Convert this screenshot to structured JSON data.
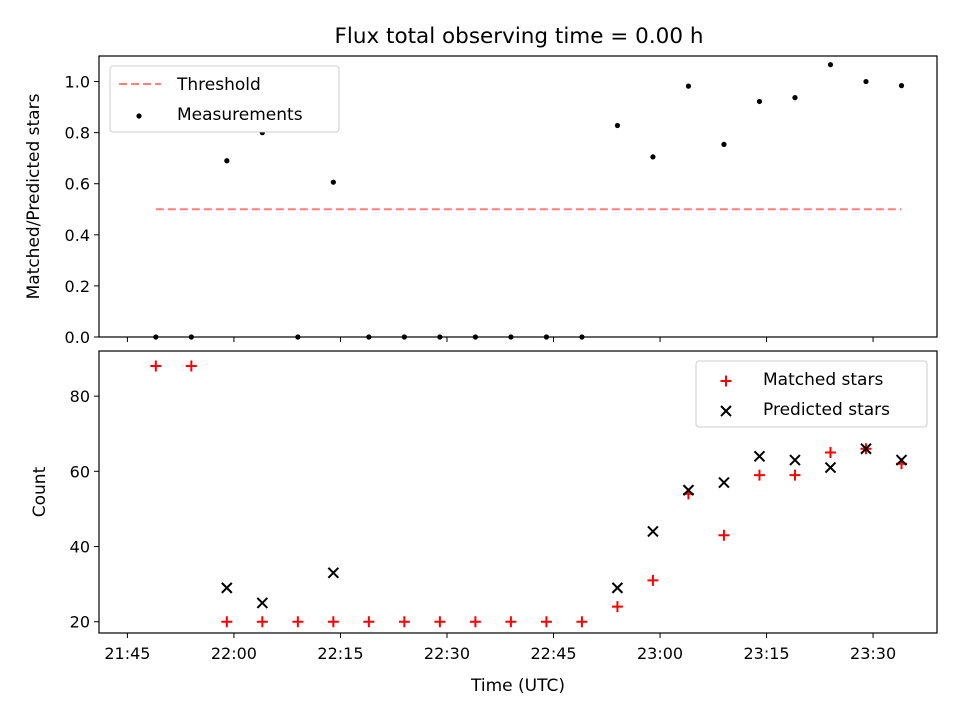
{
  "figure": {
    "title": "Flux total observing time = 0.00 h"
  },
  "chart_data": [
    {
      "type": "scatter",
      "panel": "top",
      "ylabel": "Matched/Predicted stars",
      "xlabel": "",
      "xlim": [
        "21:41",
        "23:39"
      ],
      "ylim": [
        0,
        1.1
      ],
      "yticks": [
        0.0,
        0.2,
        0.4,
        0.6,
        0.8,
        1.0
      ],
      "xticks": [
        "21:45",
        "22:00",
        "22:15",
        "22:30",
        "22:45",
        "23:00",
        "23:15",
        "23:30"
      ],
      "grid": false,
      "legend": "top-left",
      "series": [
        {
          "name": "Threshold",
          "style": "dashed-line",
          "color": "#ff7f7f",
          "x": [
            "21:49",
            "23:34"
          ],
          "values": [
            0.5,
            0.5
          ]
        },
        {
          "name": "Measurements",
          "style": "dot",
          "color": "#000000",
          "x": [
            "21:49",
            "21:54",
            "21:59",
            "22:04",
            "22:09",
            "22:14",
            "22:19",
            "22:24",
            "22:29",
            "22:34",
            "22:39",
            "22:44",
            "22:49",
            "22:54",
            "22:59",
            "23:04",
            "23:09",
            "23:14",
            "23:19",
            "23:24",
            "23:29",
            "23:34"
          ],
          "values": [
            0.0,
            0.0,
            0.69,
            0.8,
            0.0,
            0.606,
            0.0,
            0.0,
            0.0,
            0.0,
            0.0,
            0.0,
            0.0,
            0.828,
            0.705,
            0.982,
            0.754,
            0.922,
            0.937,
            1.066,
            1.0,
            0.984
          ]
        }
      ]
    },
    {
      "type": "scatter",
      "panel": "bottom",
      "ylabel": "Count",
      "xlabel": "Time (UTC)",
      "xlim": [
        "21:41",
        "23:39"
      ],
      "ylim": [
        17,
        92
      ],
      "yticks": [
        20,
        40,
        60,
        80
      ],
      "xticks": [
        "21:45",
        "22:00",
        "22:15",
        "22:30",
        "22:45",
        "23:00",
        "23:15",
        "23:30"
      ],
      "grid": false,
      "legend": "top-right",
      "series": [
        {
          "name": "Matched stars",
          "style": "plus",
          "color": "#ff0000",
          "x": [
            "21:49",
            "21:54",
            "21:59",
            "22:04",
            "22:09",
            "22:14",
            "22:19",
            "22:24",
            "22:29",
            "22:34",
            "22:39",
            "22:44",
            "22:49",
            "22:54",
            "22:59",
            "23:04",
            "23:09",
            "23:14",
            "23:19",
            "23:24",
            "23:29",
            "23:34"
          ],
          "values": [
            88,
            88,
            20,
            20,
            20,
            20,
            20,
            20,
            20,
            20,
            20,
            20,
            20,
            24,
            31,
            54,
            43,
            59,
            59,
            65,
            66,
            62
          ]
        },
        {
          "name": "Predicted stars",
          "style": "x",
          "color": "#000000",
          "x": [
            "21:59",
            "22:04",
            "22:14",
            "22:54",
            "22:59",
            "23:04",
            "23:09",
            "23:14",
            "23:19",
            "23:24",
            "23:29",
            "23:34"
          ],
          "values": [
            29,
            25,
            33,
            29,
            44,
            55,
            57,
            64,
            63,
            61,
            66,
            63
          ]
        }
      ]
    }
  ]
}
